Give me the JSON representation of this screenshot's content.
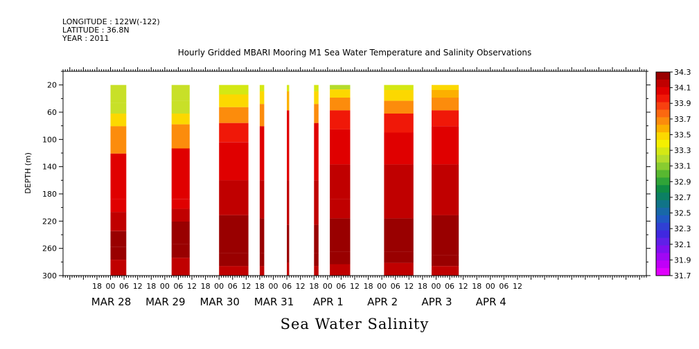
{
  "header": {
    "longitude": "LONGITUDE : 122W(-122)",
    "latitude": "LATITUDE : 36.8N",
    "year": "YEAR : 2011"
  },
  "chart_data": {
    "type": "heatmap",
    "title": "Hourly Gridded MBARI Mooring M1 Sea Water Temperature and Salinity Observations",
    "subtitle": "Sea Water Salinity",
    "ylabel": "DEPTH (m)",
    "xlabel": "",
    "ylim": [
      300,
      0
    ],
    "y_ticks": [
      "20",
      "60",
      "100",
      "140",
      "180",
      "220",
      "260",
      "300"
    ],
    "x_range_hours": [
      -21,
      237
    ],
    "hour_ticks": [
      "18",
      "00",
      "06",
      "12",
      "18",
      "00",
      "06",
      "12",
      "18",
      "00",
      "06",
      "12",
      "18",
      "00",
      "06",
      "12",
      "18",
      "00",
      "06",
      "12",
      "18",
      "00",
      "06",
      "12",
      "18",
      "00",
      "06",
      "12",
      "18",
      "00",
      "06",
      "12"
    ],
    "date_labels": [
      "MAR 28",
      "MAR 29",
      "MAR 30",
      "MAR 31",
      "APR  1",
      "APR  2",
      "APR  3",
      "APR  4"
    ],
    "colorbar_levels": [
      "34.3",
      "34.1",
      "33.9",
      "33.7",
      "33.5",
      "33.3",
      "33.1",
      "32.9",
      "32.7",
      "32.5",
      "32.3",
      "32.1",
      "31.9",
      "31.7"
    ],
    "colorbar_colors": [
      "#990000",
      "#c00000",
      "#e00000",
      "#f01808",
      "#f84010",
      "#fc6810",
      "#fc8c0c",
      "#fcb000",
      "#fcd800",
      "#f4f000",
      "#d4e814",
      "#b4dc2c",
      "#88cc30",
      "#58b830",
      "#30a438",
      "#108c44",
      "#0c8064",
      "#107488",
      "#1868a8",
      "#2058c4",
      "#3040d4",
      "#4028e0",
      "#6020e8",
      "#8010f0",
      "#a008f4",
      "#c000f8",
      "#e000fc"
    ],
    "segments": [
      {
        "start_hour": 0,
        "end_hour": 7,
        "profile": [
          [
            "#c8e028",
            0
          ],
          [
            "#c8e028",
            28
          ],
          [
            "#fcd800",
            45
          ],
          [
            "#fc8c0c",
            65
          ],
          [
            "#e00000",
            108
          ],
          [
            "#e00000",
            180
          ],
          [
            "#c00000",
            200
          ],
          [
            "#990000",
            230
          ],
          [
            "#990000",
            255
          ],
          [
            "#c00000",
            275
          ]
        ]
      },
      {
        "start_hour": 27,
        "end_hour": 35,
        "profile": [
          [
            "#c8e028",
            0
          ],
          [
            "#c8e028",
            25
          ],
          [
            "#fcd800",
            45
          ],
          [
            "#fc8c0c",
            62
          ],
          [
            "#e00000",
            100
          ],
          [
            "#e00000",
            180
          ],
          [
            "#c00000",
            195
          ],
          [
            "#990000",
            215
          ],
          [
            "#990000",
            250
          ],
          [
            "#c00000",
            272
          ]
        ]
      },
      {
        "start_hour": 48,
        "end_hour": 61,
        "profile": [
          [
            "#d4e814",
            0
          ],
          [
            "#fcd800",
            15
          ],
          [
            "#fc8c0c",
            35
          ],
          [
            "#f01808",
            60
          ],
          [
            "#e00000",
            90
          ],
          [
            "#c00000",
            150
          ],
          [
            "#990000",
            205
          ],
          [
            "#990000",
            265
          ],
          [
            "#c00000",
            285
          ]
        ]
      },
      {
        "start_hour": 66,
        "end_hour": 68,
        "profile": [
          [
            "#d4e814",
            0
          ],
          [
            "#fcd800",
            10
          ],
          [
            "#fc8c0c",
            30
          ],
          [
            "#e00000",
            65
          ],
          [
            "#c00000",
            150
          ],
          [
            "#990000",
            210
          ],
          [
            "#990000",
            265
          ],
          [
            "#c00000",
            285
          ]
        ]
      },
      {
        "start_hour": 78,
        "end_hour": 79,
        "profile": [
          [
            "#d4e814",
            0
          ],
          [
            "#fcb000",
            10
          ],
          [
            "#e00000",
            40
          ],
          [
            "#c00000",
            150
          ],
          [
            "#990000",
            220
          ],
          [
            "#c00000",
            280
          ]
        ]
      },
      {
        "start_hour": 90,
        "end_hour": 92,
        "profile": [
          [
            "#d4e814",
            0
          ],
          [
            "#fcd800",
            10
          ],
          [
            "#fc8c0c",
            30
          ],
          [
            "#e00000",
            60
          ],
          [
            "#c00000",
            150
          ],
          [
            "#990000",
            220
          ],
          [
            "#990000",
            265
          ],
          [
            "#c00000",
            285
          ]
        ]
      },
      {
        "start_hour": 97,
        "end_hour": 106,
        "profile": [
          [
            "#b4dc2c",
            0
          ],
          [
            "#fcd800",
            7
          ],
          [
            "#fc8c0c",
            20
          ],
          [
            "#f01808",
            40
          ],
          [
            "#e00000",
            70
          ],
          [
            "#c00000",
            125
          ],
          [
            "#c00000",
            180
          ],
          [
            "#990000",
            210
          ],
          [
            "#990000",
            262
          ],
          [
            "#c00000",
            282
          ]
        ]
      },
      {
        "start_hour": 121,
        "end_hour": 134,
        "profile": [
          [
            "#d4e814",
            0
          ],
          [
            "#fcd800",
            8
          ],
          [
            "#fc8c0c",
            25
          ],
          [
            "#f01808",
            45
          ],
          [
            "#e00000",
            75
          ],
          [
            "#c00000",
            125
          ],
          [
            "#c00000",
            190
          ],
          [
            "#990000",
            210
          ],
          [
            "#990000",
            262
          ],
          [
            "#c00000",
            280
          ]
        ]
      },
      {
        "start_hour": 142,
        "end_hour": 154,
        "profile": [
          [
            "#fcd800",
            0
          ],
          [
            "#fcb000",
            8
          ],
          [
            "#fc8c0c",
            20
          ],
          [
            "#f01808",
            40
          ],
          [
            "#e00000",
            65
          ],
          [
            "#c00000",
            125
          ],
          [
            "#c00000",
            185
          ],
          [
            "#990000",
            205
          ],
          [
            "#990000",
            268
          ],
          [
            "#c00000",
            285
          ]
        ]
      }
    ]
  }
}
